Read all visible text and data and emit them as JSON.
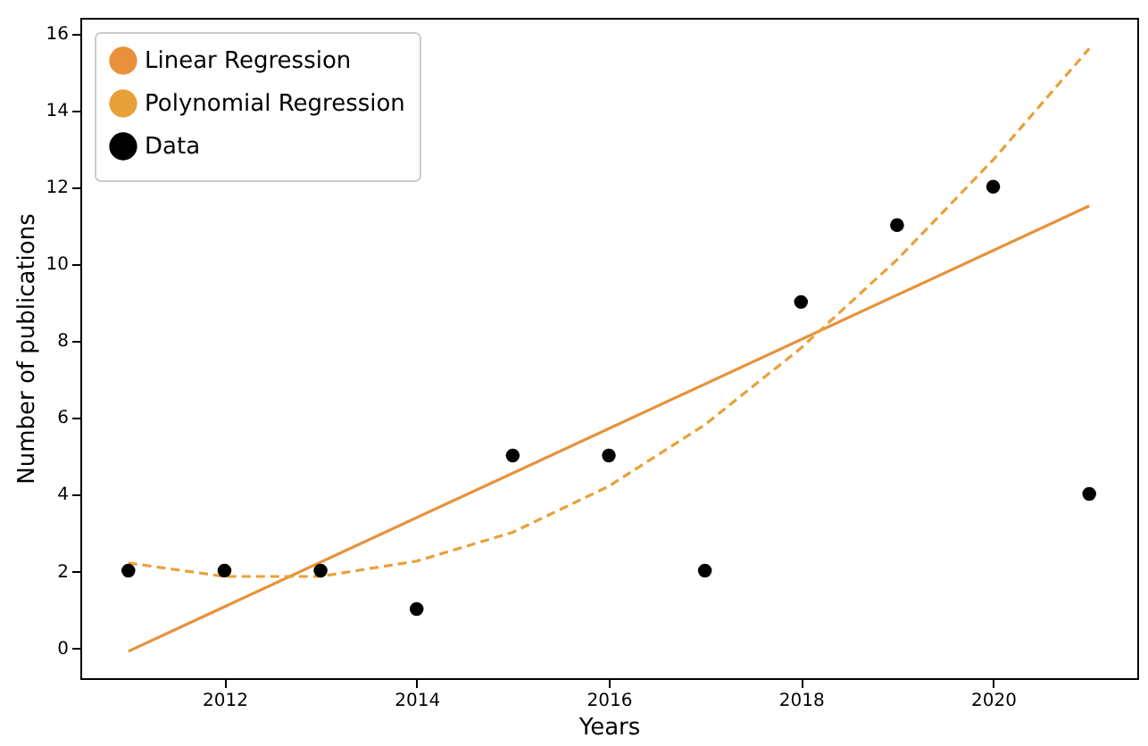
{
  "chart_data": {
    "type": "line",
    "xlabel": "Years",
    "ylabel": "Number of publications",
    "x": [
      2011,
      2012,
      2013,
      2014,
      2015,
      2016,
      2017,
      2018,
      2019,
      2020,
      2021
    ],
    "series": [
      {
        "name": "Linear Regression",
        "type": "line",
        "color": "#e8913a",
        "line_style": "solid",
        "x": [
          2011,
          2021
        ],
        "values": [
          -0.1,
          11.5
        ]
      },
      {
        "name": "Polynomial Regression",
        "type": "line",
        "color": "#e8a13a",
        "line_style": "dashed",
        "values": [
          2.2,
          1.85,
          1.85,
          2.25,
          3.0,
          4.2,
          5.8,
          7.8,
          10.1,
          12.7,
          15.6
        ]
      },
      {
        "name": "Data",
        "type": "scatter",
        "color": "#000000",
        "values": [
          2,
          2,
          2,
          1,
          5,
          5,
          2,
          9,
          11,
          12,
          4
        ]
      }
    ],
    "xlim": [
      2010.5,
      2021.5
    ],
    "xticks": [
      2012,
      2014,
      2016,
      2018,
      2020
    ],
    "ylim": [
      -0.8,
      16.4
    ],
    "yticks": [
      0,
      2,
      4,
      6,
      8,
      10,
      12,
      14,
      16
    ],
    "legend": "top left",
    "grid": false
  }
}
